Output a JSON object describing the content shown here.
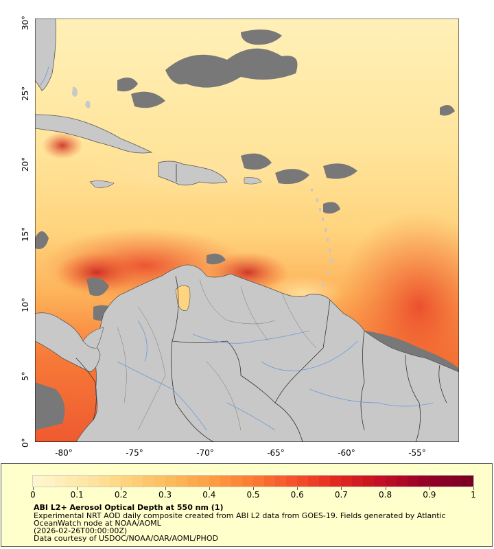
{
  "map": {
    "y_ticks": [
      "30°",
      "25°",
      "20°",
      "15°",
      "10°",
      "5°",
      "0°"
    ],
    "x_ticks": [
      "-80°",
      "-75°",
      "-70°",
      "-65°",
      "-60°",
      "-55°"
    ],
    "colors": {
      "land": "#c8c8c8",
      "no_data": "#787878",
      "border": "#333333",
      "river": "#6a9bd8"
    }
  },
  "legend": {
    "scale_labels": [
      "0",
      "0.1",
      "0.2",
      "0.3",
      "0.4",
      "0.5",
      "0.6",
      "0.7",
      "0.8",
      "0.9",
      "1"
    ],
    "colormap": [
      "#fff5cc",
      "#ffe8a8",
      "#ffd480",
      "#fdbc5c",
      "#fd9e44",
      "#fc7a34",
      "#f4502a",
      "#e0261f",
      "#c20f24",
      "#960027",
      "#7a0022"
    ],
    "title": "ABI L2+ Aerosol Optical Depth at 550 nm (1)",
    "line1": "Experimental NRT AOD daily composite created from ABI L2 data from GOES-19. Fields generated by Atlantic",
    "line2": "OceanWatch node at NOAA/AOML",
    "line3": "(2026-02-26T00:00:00Z)",
    "line4": "Data courtesy of USDOC/NOAA/OAR/AOML/PHOD"
  }
}
